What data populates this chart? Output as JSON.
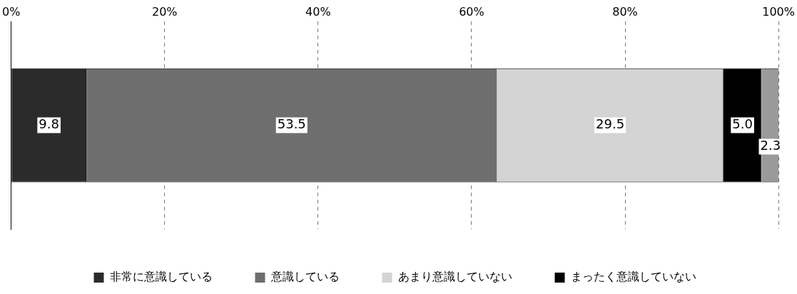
{
  "chart_data": {
    "type": "bar",
    "orientation": "horizontal",
    "stacked": true,
    "categories": [
      null
    ],
    "series": [
      {
        "name": "非常に意識している",
        "color": "#2b2b2b",
        "values": [
          9.8
        ],
        "value_labels": [
          "9.8"
        ]
      },
      {
        "name": "意識している",
        "color": "#6e6e6e",
        "values": [
          53.5
        ],
        "value_labels": [
          "53.5"
        ]
      },
      {
        "name": "あまり意識していない",
        "color": "#d4d4d4",
        "values": [
          29.5
        ],
        "value_labels": [
          "29.5"
        ]
      },
      {
        "name": "まったく意識していない",
        "color": "#000000",
        "values": [
          5.0
        ],
        "value_labels": [
          "5.0"
        ]
      },
      {
        "color": "#9a9a9a",
        "values": [
          2.3
        ],
        "value_labels": [
          "2.3"
        ]
      }
    ],
    "xlim": [
      0,
      100
    ],
    "xticks": [
      {
        "value": 0,
        "label": "0%"
      },
      {
        "value": 20,
        "label": "20%"
      },
      {
        "value": 40,
        "label": "40%"
      },
      {
        "value": 60,
        "label": "60%"
      },
      {
        "value": 80,
        "label": "80%"
      },
      {
        "value": 100,
        "label": "100%"
      }
    ],
    "grid": "x",
    "legend": "bottom",
    "tick_labels": "x"
  }
}
